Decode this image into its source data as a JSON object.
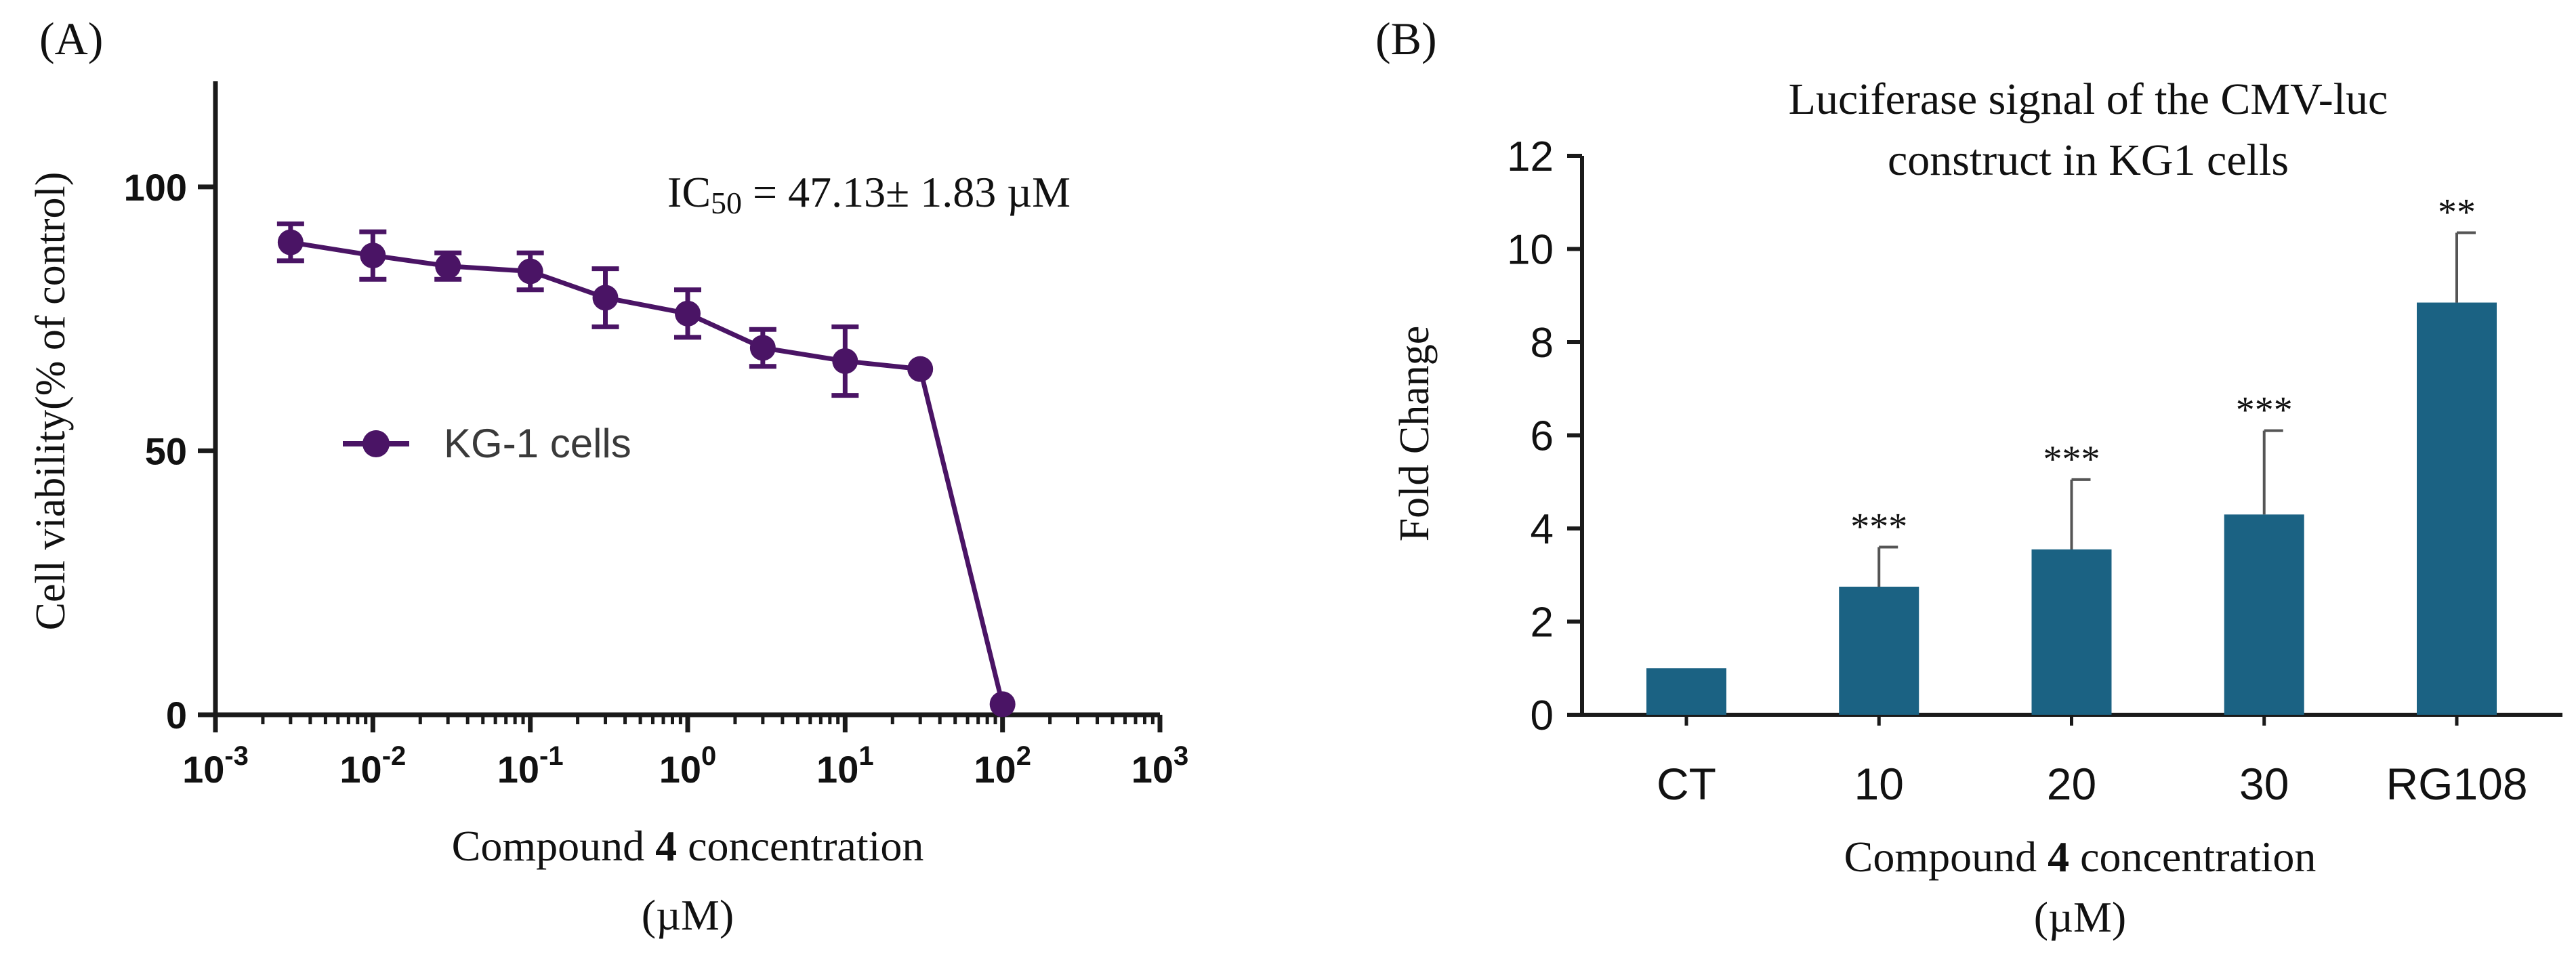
{
  "colors": {
    "line_series": "#4a1465",
    "bar_fill": "#1b6283",
    "axis": "#1a1a1a"
  },
  "chart_data": [
    {
      "panel_label": "(A)",
      "type": "line",
      "xscale": "log",
      "xlabel_parts": [
        "Compound ",
        "4",
        " concentration"
      ],
      "xlabel_unit": "(µM)",
      "ylabel": "Cell viability(% of control)",
      "xlim": [
        0.001,
        1000
      ],
      "ylim": [
        0,
        120
      ],
      "xticks": [
        {
          "base": "10",
          "exp": "-3",
          "value": 0.001
        },
        {
          "base": "10",
          "exp": "-2",
          "value": 0.01
        },
        {
          "base": "10",
          "exp": "-1",
          "value": 0.1
        },
        {
          "base": "10",
          "exp": "0",
          "value": 1
        },
        {
          "base": "10",
          "exp": "1",
          "value": 10
        },
        {
          "base": "10",
          "exp": "2",
          "value": 100
        },
        {
          "base": "10",
          "exp": "3",
          "value": 1000
        }
      ],
      "yticks": [
        {
          "label": "0",
          "value": 0
        },
        {
          "label": "50",
          "value": 50
        },
        {
          "label": "100",
          "value": 100
        }
      ],
      "annotation": {
        "pre": "IC",
        "sub": "50",
        "post": " = 47.13± 1.83 µM"
      },
      "legend": {
        "label": "KG-1 cells",
        "position": "center-left"
      },
      "series": [
        {
          "name": "KG-1 cells",
          "x": [
            0.003,
            0.01,
            0.03,
            0.1,
            0.3,
            1,
            3,
            10,
            30,
            100
          ],
          "y": [
            89.5,
            87,
            85,
            84,
            79,
            76,
            69.5,
            67,
            65.5,
            2
          ],
          "err": [
            3.5,
            4.5,
            2.5,
            3.5,
            5.5,
            4.5,
            3.5,
            6.5,
            0,
            0
          ]
        }
      ]
    },
    {
      "panel_label": "(B)",
      "type": "bar",
      "title_lines": [
        "Luciferase signal of the CMV-luc",
        "construct in KG1 cells"
      ],
      "categories": [
        "CT",
        "10",
        "20",
        "30",
        "RG108"
      ],
      "values": [
        1.0,
        2.75,
        3.55,
        4.3,
        8.85
      ],
      "errors": [
        0,
        0.85,
        1.5,
        1.8,
        1.5
      ],
      "significance": [
        "",
        "***",
        "***",
        "***",
        "**"
      ],
      "xlabel_parts": [
        "Compound ",
        "4",
        " concentration"
      ],
      "xlabel_unit": "(µM)",
      "ylabel": "Fold Change",
      "ylim": [
        0,
        12
      ],
      "yticks": [
        0,
        2,
        4,
        6,
        8,
        10,
        12
      ]
    }
  ]
}
